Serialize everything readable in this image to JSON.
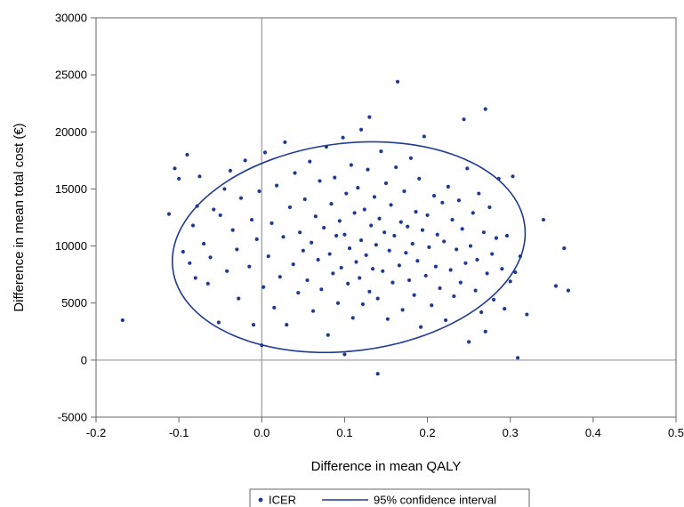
{
  "chart_data": {
    "type": "scatter",
    "title": "",
    "xlabel": "Difference in mean QALY",
    "ylabel": "Difference in mean total cost (€)",
    "xlim": [
      -0.2,
      0.5
    ],
    "ylim": [
      -5000,
      30000
    ],
    "xticks": [
      -0.2,
      -0.1,
      0.0,
      0.1,
      0.2,
      0.3,
      0.4,
      0.5
    ],
    "xtick_labels": [
      "-0.2",
      "-0.1",
      "0.0",
      "0.1",
      "0.2",
      "0.3",
      "0.4",
      "0.5"
    ],
    "yticks": [
      -5000,
      0,
      5000,
      10000,
      15000,
      20000,
      25000,
      30000
    ],
    "ytick_labels": [
      "-5000",
      "0",
      "5000",
      "10000",
      "15000",
      "20000",
      "25000",
      "30000"
    ],
    "reference_lines": {
      "x": 0,
      "y": 0
    },
    "legend": {
      "position": "bottom",
      "entries": [
        {
          "label": "ICER",
          "marker": "dot"
        },
        {
          "label": "95% confidence interval",
          "marker": "line"
        }
      ]
    },
    "colors": {
      "points": "#1f3a93",
      "ellipse": "#1f3a93",
      "refline": "#a0a0a0",
      "frame": "#666666"
    },
    "series": [
      {
        "name": "ICER",
        "points": [
          [
            -0.168,
            3500
          ],
          [
            -0.112,
            12800
          ],
          [
            -0.105,
            16800
          ],
          [
            -0.1,
            15900
          ],
          [
            -0.09,
            18000
          ],
          [
            -0.095,
            9500
          ],
          [
            -0.087,
            8500
          ],
          [
            -0.083,
            11800
          ],
          [
            -0.08,
            7200
          ],
          [
            -0.078,
            13500
          ],
          [
            -0.075,
            16100
          ],
          [
            -0.07,
            10200
          ],
          [
            -0.065,
            6700
          ],
          [
            -0.062,
            9000
          ],
          [
            -0.058,
            13200
          ],
          [
            -0.052,
            3300
          ],
          [
            -0.05,
            12700
          ],
          [
            -0.045,
            15000
          ],
          [
            -0.042,
            7800
          ],
          [
            -0.038,
            16600
          ],
          [
            -0.035,
            11400
          ],
          [
            -0.03,
            9700
          ],
          [
            -0.028,
            5400
          ],
          [
            -0.025,
            14200
          ],
          [
            -0.02,
            17500
          ],
          [
            -0.015,
            8200
          ],
          [
            -0.012,
            12300
          ],
          [
            -0.01,
            3100
          ],
          [
            -0.006,
            10600
          ],
          [
            -0.003,
            14800
          ],
          [
            0.0,
            1300
          ],
          [
            0.002,
            6400
          ],
          [
            0.004,
            18200
          ],
          [
            0.008,
            9100
          ],
          [
            0.012,
            12000
          ],
          [
            0.015,
            4600
          ],
          [
            0.018,
            15300
          ],
          [
            0.022,
            7300
          ],
          [
            0.026,
            10800
          ],
          [
            0.028,
            19100
          ],
          [
            0.03,
            3100
          ],
          [
            0.034,
            13400
          ],
          [
            0.038,
            8400
          ],
          [
            0.04,
            16400
          ],
          [
            0.044,
            5900
          ],
          [
            0.046,
            11200
          ],
          [
            0.05,
            9600
          ],
          [
            0.052,
            14100
          ],
          [
            0.055,
            7000
          ],
          [
            0.058,
            17400
          ],
          [
            0.06,
            10300
          ],
          [
            0.062,
            4300
          ],
          [
            0.065,
            12600
          ],
          [
            0.068,
            8800
          ],
          [
            0.07,
            15700
          ],
          [
            0.072,
            6200
          ],
          [
            0.075,
            11600
          ],
          [
            0.078,
            18700
          ],
          [
            0.08,
            2200
          ],
          [
            0.082,
            9300
          ],
          [
            0.084,
            13700
          ],
          [
            0.086,
            7600
          ],
          [
            0.088,
            16000
          ],
          [
            0.09,
            10900
          ],
          [
            0.092,
            5000
          ],
          [
            0.094,
            12200
          ],
          [
            0.096,
            8100
          ],
          [
            0.098,
            19500
          ],
          [
            0.1,
            500
          ],
          [
            0.1,
            11000
          ],
          [
            0.102,
            14600
          ],
          [
            0.104,
            6700
          ],
          [
            0.106,
            9800
          ],
          [
            0.108,
            17100
          ],
          [
            0.11,
            3700
          ],
          [
            0.112,
            12900
          ],
          [
            0.114,
            8600
          ],
          [
            0.116,
            15100
          ],
          [
            0.118,
            7200
          ],
          [
            0.12,
            10500
          ],
          [
            0.12,
            20200
          ],
          [
            0.122,
            4900
          ],
          [
            0.124,
            13200
          ],
          [
            0.126,
            9200
          ],
          [
            0.128,
            16700
          ],
          [
            0.13,
            21300
          ],
          [
            0.13,
            6000
          ],
          [
            0.132,
            11800
          ],
          [
            0.134,
            8000
          ],
          [
            0.136,
            14300
          ],
          [
            0.138,
            10100
          ],
          [
            0.14,
            -1200
          ],
          [
            0.14,
            5400
          ],
          [
            0.142,
            12400
          ],
          [
            0.144,
            18300
          ],
          [
            0.146,
            7800
          ],
          [
            0.148,
            11200
          ],
          [
            0.15,
            15500
          ],
          [
            0.152,
            3600
          ],
          [
            0.154,
            9600
          ],
          [
            0.156,
            13600
          ],
          [
            0.158,
            6800
          ],
          [
            0.16,
            10900
          ],
          [
            0.162,
            16900
          ],
          [
            0.164,
            24400
          ],
          [
            0.166,
            8300
          ],
          [
            0.168,
            12100
          ],
          [
            0.17,
            4400
          ],
          [
            0.172,
            14800
          ],
          [
            0.174,
            9400
          ],
          [
            0.176,
            11700
          ],
          [
            0.178,
            7000
          ],
          [
            0.18,
            17700
          ],
          [
            0.182,
            10200
          ],
          [
            0.184,
            5700
          ],
          [
            0.186,
            13000
          ],
          [
            0.188,
            8700
          ],
          [
            0.19,
            15900
          ],
          [
            0.192,
            2900
          ],
          [
            0.194,
            11400
          ],
          [
            0.196,
            19600
          ],
          [
            0.198,
            7400
          ],
          [
            0.2,
            12700
          ],
          [
            0.202,
            9900
          ],
          [
            0.205,
            4800
          ],
          [
            0.208,
            14400
          ],
          [
            0.21,
            8200
          ],
          [
            0.212,
            11000
          ],
          [
            0.215,
            6300
          ],
          [
            0.218,
            13800
          ],
          [
            0.22,
            10400
          ],
          [
            0.222,
            3500
          ],
          [
            0.225,
            15200
          ],
          [
            0.228,
            7900
          ],
          [
            0.23,
            12300
          ],
          [
            0.232,
            5600
          ],
          [
            0.235,
            9700
          ],
          [
            0.238,
            14000
          ],
          [
            0.24,
            6800
          ],
          [
            0.242,
            11500
          ],
          [
            0.244,
            21100
          ],
          [
            0.246,
            8500
          ],
          [
            0.248,
            16800
          ],
          [
            0.25,
            1600
          ],
          [
            0.252,
            10000
          ],
          [
            0.255,
            12900
          ],
          [
            0.258,
            6100
          ],
          [
            0.26,
            8800
          ],
          [
            0.262,
            14600
          ],
          [
            0.265,
            4200
          ],
          [
            0.268,
            11200
          ],
          [
            0.27,
            22000
          ],
          [
            0.27,
            2500
          ],
          [
            0.272,
            7600
          ],
          [
            0.275,
            13400
          ],
          [
            0.278,
            9300
          ],
          [
            0.28,
            5300
          ],
          [
            0.283,
            10700
          ],
          [
            0.286,
            15900
          ],
          [
            0.29,
            8000
          ],
          [
            0.293,
            4500
          ],
          [
            0.296,
            10900
          ],
          [
            0.3,
            6900
          ],
          [
            0.303,
            16100
          ],
          [
            0.306,
            7700
          ],
          [
            0.309,
            200
          ],
          [
            0.312,
            9100
          ],
          [
            0.32,
            4000
          ],
          [
            0.34,
            12300
          ],
          [
            0.355,
            6500
          ],
          [
            0.365,
            9800
          ],
          [
            0.37,
            6100
          ]
        ]
      }
    ],
    "ellipse": {
      "name": "95% confidence interval",
      "cx": 0.105,
      "cy": 9900,
      "rx": 0.214,
      "ry": 9100,
      "rotation_deg": -7
    }
  }
}
